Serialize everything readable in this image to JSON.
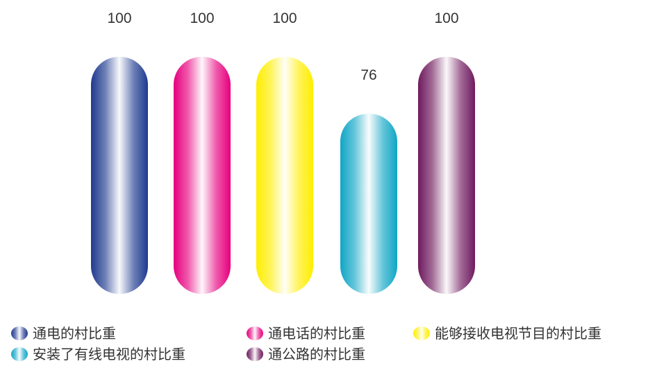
{
  "chart_data": {
    "type": "bar",
    "categories": [
      "通电的村比重",
      "通电话的村比重",
      "能够接收电视节目的村比重",
      "安装了有线电视的村比重",
      "通公路的村比重"
    ],
    "values": [
      100,
      100,
      100,
      76,
      100
    ],
    "value_labels": [
      "100",
      "100",
      "100",
      "76",
      "100"
    ],
    "ylim": [
      0,
      100
    ],
    "grid": false,
    "legend_position": "bottom",
    "colors": [
      "#1f3a8f",
      "#e6007e",
      "#ffee00",
      "#10a6c6",
      "#6e1a5e"
    ],
    "title": "",
    "xlabel": "",
    "ylabel": ""
  }
}
